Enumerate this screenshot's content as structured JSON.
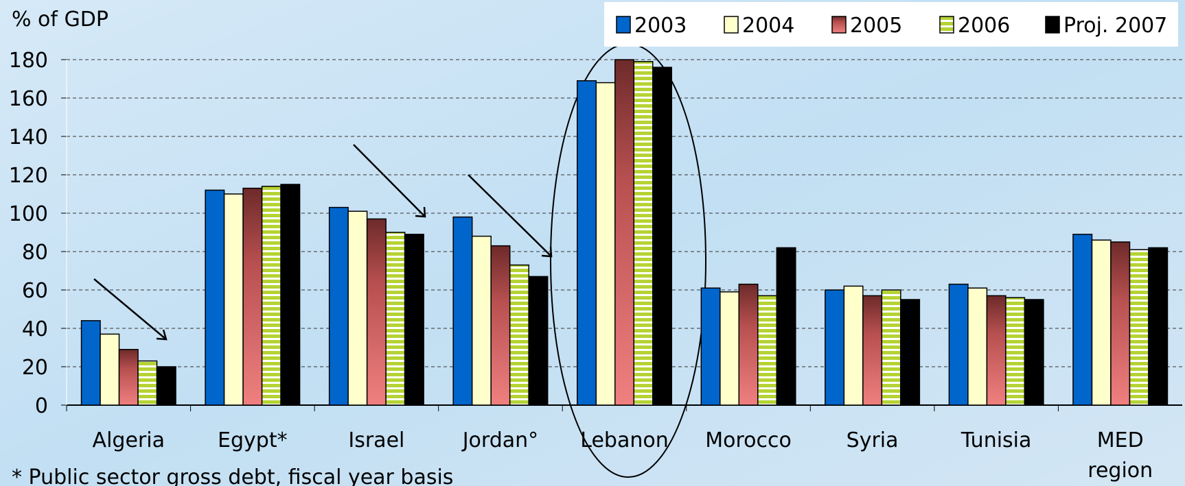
{
  "chart_data": {
    "type": "bar",
    "y_label": "% of GDP",
    "footnote": "* Public sector gross debt, fiscal year basis",
    "categories": [
      "Algeria",
      "Egypt*",
      "Israel",
      "Jordan°",
      "Lebanon",
      "Morocco",
      "Syria",
      "Tunisia",
      "MED region"
    ],
    "series": [
      {
        "name": "2003",
        "color": "#0066cc",
        "values": [
          44,
          112,
          103,
          98,
          169,
          61,
          60,
          63,
          89
        ]
      },
      {
        "name": "2004",
        "color": "#ffffcc",
        "values": [
          37,
          110,
          101,
          88,
          168,
          59,
          62,
          61,
          86
        ]
      },
      {
        "name": "2005",
        "color": "#f08080",
        "pattern": "gradient",
        "values": [
          29,
          113,
          97,
          83,
          180,
          63,
          57,
          57,
          85
        ]
      },
      {
        "name": "2006",
        "color": "#b5d334",
        "pattern": "stripes",
        "values": [
          23,
          114,
          90,
          73,
          179,
          57,
          60,
          56,
          81
        ]
      },
      {
        "name": "Proj. 2007",
        "color": "#000000",
        "values": [
          20,
          115,
          89,
          67,
          176,
          82,
          55,
          55,
          82
        ]
      }
    ],
    "ylim": [
      0,
      180
    ],
    "yticks": [
      0,
      20,
      40,
      60,
      80,
      100,
      120,
      140,
      160,
      180
    ],
    "grid": true,
    "legend": "top-right"
  }
}
